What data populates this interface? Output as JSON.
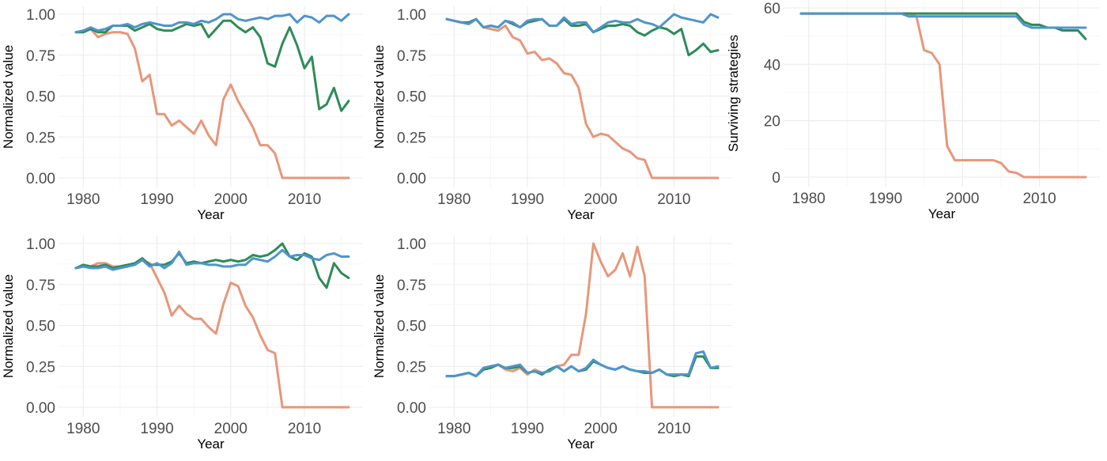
{
  "colors": {
    "orange": "#e8967a",
    "green": "#2e8b57",
    "blue": "#4f94cd"
  },
  "x_years": [
    1979,
    1980,
    1981,
    1982,
    1983,
    1984,
    1985,
    1986,
    1987,
    1988,
    1989,
    1990,
    1991,
    1992,
    1993,
    1994,
    1995,
    1996,
    1997,
    1998,
    1999,
    2000,
    2001,
    2002,
    2003,
    2004,
    2005,
    2006,
    2007,
    2008,
    2009,
    2010,
    2011,
    2012,
    2013,
    2014,
    2015,
    2016
  ],
  "chart_data": [
    {
      "type": "line",
      "xlabel": "Year",
      "ylabel": "Normalized value",
      "xlim": [
        1979,
        2016
      ],
      "ylim": [
        0,
        1
      ],
      "x_ticks": [
        "1980",
        "1990",
        "2000",
        "2010"
      ],
      "y_ticks": [
        "0.00",
        "0.25",
        "0.50",
        "0.75",
        "1.00"
      ],
      "series": [
        {
          "name": "orange",
          "values": [
            0.89,
            0.9,
            0.91,
            0.86,
            0.88,
            0.89,
            0.89,
            0.88,
            0.79,
            0.59,
            0.63,
            0.39,
            0.39,
            0.32,
            0.35,
            0.31,
            0.27,
            0.35,
            0.26,
            0.2,
            0.48,
            0.57,
            0.47,
            0.39,
            0.31,
            0.2,
            0.2,
            0.15,
            0.0,
            0.0,
            0.0,
            0.0,
            0.0,
            0.0,
            0.0,
            0.0,
            0.0,
            0.0
          ]
        },
        {
          "name": "green",
          "values": [
            0.89,
            0.89,
            0.91,
            0.89,
            0.89,
            0.93,
            0.93,
            0.93,
            0.9,
            0.92,
            0.94,
            0.91,
            0.9,
            0.9,
            0.92,
            0.94,
            0.93,
            0.94,
            0.86,
            0.91,
            0.96,
            0.96,
            0.92,
            0.89,
            0.92,
            0.86,
            0.7,
            0.68,
            0.82,
            0.92,
            0.81,
            0.67,
            0.74,
            0.42,
            0.45,
            0.55,
            0.41,
            0.47
          ]
        },
        {
          "name": "blue",
          "values": [
            0.89,
            0.9,
            0.92,
            0.9,
            0.91,
            0.93,
            0.93,
            0.94,
            0.92,
            0.94,
            0.95,
            0.94,
            0.93,
            0.93,
            0.95,
            0.95,
            0.94,
            0.96,
            0.95,
            0.97,
            1.0,
            1.0,
            0.97,
            0.96,
            0.97,
            0.98,
            0.97,
            0.99,
            0.99,
            1.0,
            0.95,
            0.99,
            0.98,
            0.95,
            0.99,
            0.99,
            0.96,
            1.0
          ]
        }
      ]
    },
    {
      "type": "line",
      "xlabel": "Year",
      "ylabel": "Normalized value",
      "xlim": [
        1979,
        2016
      ],
      "ylim": [
        0,
        1
      ],
      "x_ticks": [
        "1980",
        "1990",
        "2000",
        "2010"
      ],
      "y_ticks": [
        "0.00",
        "0.25",
        "0.50",
        "0.75",
        "1.00"
      ],
      "series": [
        {
          "name": "orange",
          "values": [
            0.97,
            0.96,
            0.95,
            0.95,
            0.97,
            0.92,
            0.91,
            0.9,
            0.93,
            0.86,
            0.84,
            0.76,
            0.77,
            0.72,
            0.73,
            0.7,
            0.64,
            0.63,
            0.55,
            0.33,
            0.25,
            0.27,
            0.26,
            0.22,
            0.18,
            0.16,
            0.12,
            0.11,
            0.0,
            0.0,
            0.0,
            0.0,
            0.0,
            0.0,
            0.0,
            0.0,
            0.0,
            0.0
          ]
        },
        {
          "name": "green",
          "values": [
            0.97,
            0.96,
            0.95,
            0.95,
            0.97,
            0.92,
            0.93,
            0.92,
            0.96,
            0.94,
            0.92,
            0.95,
            0.96,
            0.97,
            0.93,
            0.93,
            0.97,
            0.93,
            0.93,
            0.94,
            0.89,
            0.91,
            0.93,
            0.93,
            0.94,
            0.93,
            0.89,
            0.87,
            0.9,
            0.92,
            0.91,
            0.88,
            0.91,
            0.75,
            0.78,
            0.82,
            0.77,
            0.78
          ]
        },
        {
          "name": "blue",
          "values": [
            0.97,
            0.96,
            0.95,
            0.94,
            0.97,
            0.92,
            0.93,
            0.92,
            0.96,
            0.95,
            0.92,
            0.96,
            0.97,
            0.97,
            0.93,
            0.93,
            0.98,
            0.94,
            0.95,
            0.95,
            0.89,
            0.92,
            0.95,
            0.96,
            0.95,
            0.95,
            0.97,
            0.95,
            0.94,
            0.92,
            0.96,
            1.0,
            0.98,
            0.97,
            0.96,
            0.95,
            1.0,
            0.98
          ]
        }
      ]
    },
    {
      "type": "line",
      "xlabel": "Year",
      "ylabel": "Surviving strategies",
      "xlim": [
        1979,
        2016
      ],
      "ylim": [
        0,
        60
      ],
      "x_ticks": [
        "1980",
        "1990",
        "2000",
        "2010"
      ],
      "y_ticks": [
        "0",
        "20",
        "40",
        "60"
      ],
      "series": [
        {
          "name": "orange",
          "values": [
            58,
            58,
            58,
            58,
            58,
            58,
            58,
            58,
            58,
            58,
            58,
            58,
            58,
            58,
            58,
            57,
            45,
            44,
            40,
            11,
            6,
            6,
            6,
            6,
            6,
            6,
            5,
            2,
            1.5,
            0,
            0,
            0,
            0,
            0,
            0,
            0,
            0,
            0
          ]
        },
        {
          "name": "green",
          "values": [
            58,
            58,
            58,
            58,
            58,
            58,
            58,
            58,
            58,
            58,
            58,
            58,
            58,
            58,
            58,
            58,
            58,
            58,
            58,
            58,
            58,
            58,
            58,
            58,
            58,
            58,
            58,
            58,
            58,
            55,
            54,
            54,
            53,
            53,
            52,
            52,
            52,
            49
          ]
        },
        {
          "name": "blue",
          "values": [
            58,
            58,
            58,
            58,
            58,
            58,
            58,
            58,
            58,
            58,
            58,
            58,
            58,
            58,
            57,
            57,
            57,
            57,
            57,
            57,
            57,
            57,
            57,
            57,
            57,
            57,
            57,
            57,
            57,
            54,
            53,
            53,
            53,
            53,
            53,
            53,
            53,
            53
          ]
        }
      ]
    },
    {
      "type": "line",
      "xlabel": "Year",
      "ylabel": "Normalized value",
      "xlim": [
        1979,
        2016
      ],
      "ylim": [
        0,
        1
      ],
      "x_ticks": [
        "1980",
        "1990",
        "2000",
        "2010"
      ],
      "y_ticks": [
        "0.00",
        "0.25",
        "0.50",
        "0.75",
        "1.00"
      ],
      "series": [
        {
          "name": "orange",
          "values": [
            0.85,
            0.86,
            0.86,
            0.88,
            0.88,
            0.86,
            0.86,
            0.87,
            0.87,
            0.9,
            0.88,
            0.79,
            0.7,
            0.56,
            0.62,
            0.57,
            0.54,
            0.54,
            0.49,
            0.45,
            0.63,
            0.76,
            0.74,
            0.62,
            0.55,
            0.44,
            0.35,
            0.33,
            0.0,
            0.0,
            0.0,
            0.0,
            0.0,
            0.0,
            0.0,
            0.0,
            0.0,
            0.0
          ]
        },
        {
          "name": "green",
          "values": [
            0.85,
            0.87,
            0.86,
            0.86,
            0.87,
            0.85,
            0.86,
            0.87,
            0.88,
            0.91,
            0.87,
            0.87,
            0.87,
            0.89,
            0.94,
            0.88,
            0.89,
            0.88,
            0.89,
            0.9,
            0.89,
            0.9,
            0.89,
            0.9,
            0.93,
            0.92,
            0.93,
            0.96,
            1.0,
            0.92,
            0.9,
            0.94,
            0.92,
            0.79,
            0.73,
            0.88,
            0.82,
            0.79
          ]
        },
        {
          "name": "blue",
          "values": [
            0.85,
            0.86,
            0.85,
            0.85,
            0.86,
            0.84,
            0.85,
            0.86,
            0.87,
            0.9,
            0.86,
            0.88,
            0.85,
            0.88,
            0.95,
            0.87,
            0.88,
            0.88,
            0.87,
            0.87,
            0.86,
            0.86,
            0.87,
            0.87,
            0.91,
            0.9,
            0.89,
            0.92,
            0.96,
            0.92,
            0.93,
            0.93,
            0.91,
            0.9,
            0.93,
            0.94,
            0.92,
            0.92
          ]
        }
      ]
    },
    {
      "type": "line",
      "xlabel": "Year",
      "ylabel": "Normalized value",
      "xlim": [
        1979,
        2016
      ],
      "ylim": [
        0,
        1
      ],
      "x_ticks": [
        "1980",
        "1990",
        "2000",
        "2010"
      ],
      "y_ticks": [
        "0.00",
        "0.25",
        "0.50",
        "0.75",
        "1.00"
      ],
      "series": [
        {
          "name": "orange",
          "values": [
            0.19,
            0.19,
            0.2,
            0.21,
            0.19,
            0.24,
            0.25,
            0.26,
            0.23,
            0.22,
            0.24,
            0.2,
            0.23,
            0.21,
            0.22,
            0.25,
            0.26,
            0.32,
            0.32,
            0.57,
            1.0,
            0.89,
            0.8,
            0.84,
            0.94,
            0.8,
            0.98,
            0.8,
            0.0,
            0.0,
            0.0,
            0.0,
            0.0,
            0.0,
            0.0,
            0.0,
            0.0,
            0.0
          ]
        },
        {
          "name": "green",
          "values": [
            0.19,
            0.19,
            0.2,
            0.21,
            0.19,
            0.23,
            0.24,
            0.26,
            0.24,
            0.24,
            0.25,
            0.21,
            0.22,
            0.2,
            0.23,
            0.25,
            0.22,
            0.25,
            0.22,
            0.23,
            0.28,
            0.26,
            0.24,
            0.23,
            0.25,
            0.23,
            0.22,
            0.21,
            0.21,
            0.23,
            0.2,
            0.19,
            0.2,
            0.19,
            0.31,
            0.31,
            0.24,
            0.24
          ]
        },
        {
          "name": "blue",
          "values": [
            0.19,
            0.19,
            0.2,
            0.21,
            0.19,
            0.24,
            0.25,
            0.26,
            0.24,
            0.25,
            0.26,
            0.21,
            0.22,
            0.21,
            0.22,
            0.25,
            0.22,
            0.25,
            0.22,
            0.24,
            0.29,
            0.26,
            0.24,
            0.23,
            0.25,
            0.23,
            0.22,
            0.22,
            0.21,
            0.23,
            0.2,
            0.2,
            0.2,
            0.2,
            0.33,
            0.34,
            0.24,
            0.25
          ]
        }
      ]
    }
  ]
}
